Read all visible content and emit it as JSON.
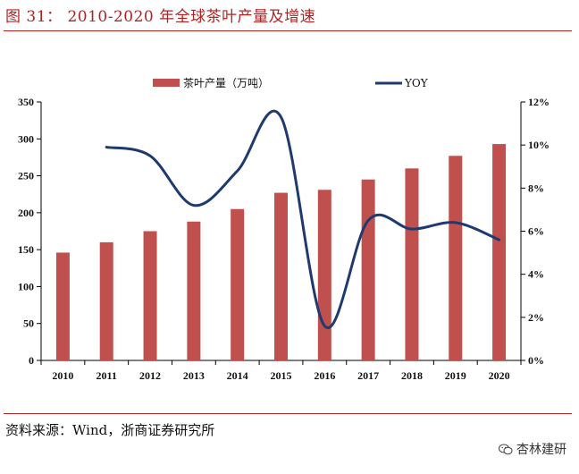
{
  "figure": {
    "title": "图 31： 2010-2020 年全球茶叶产量及增速",
    "source": "资料来源：Wind，浙商证券研究所",
    "watermark": "杏林建研",
    "watermark_icon": "wechat-icon"
  },
  "colors": {
    "bar": "#c0504d",
    "line": "#1f3a6e",
    "accent": "#b22222",
    "axis": "#000000"
  },
  "chart_data": {
    "type": "bar+line",
    "categories": [
      "2010",
      "2011",
      "2012",
      "2013",
      "2014",
      "2015",
      "2016",
      "2017",
      "2018",
      "2019",
      "2020"
    ],
    "series": [
      {
        "name": "茶叶产量（万吨）",
        "type": "bar",
        "axis": "left",
        "values": [
          146,
          160,
          175,
          188,
          205,
          227,
          231,
          245,
          260,
          277,
          293
        ]
      },
      {
        "name": "YOY",
        "type": "line",
        "axis": "right",
        "values": [
          null,
          9.9,
          9.5,
          7.2,
          8.8,
          11.3,
          1.6,
          6.5,
          6.1,
          6.4,
          5.6
        ]
      }
    ],
    "left_axis": {
      "min": 0,
      "max": 350,
      "step": 50,
      "ticks": [
        "0",
        "50",
        "100",
        "150",
        "200",
        "250",
        "300",
        "350"
      ]
    },
    "right_axis": {
      "min": 0,
      "max": 12,
      "step": 2,
      "ticks": [
        "0%",
        "2%",
        "4%",
        "6%",
        "8%",
        "10%",
        "12%"
      ]
    },
    "legend": [
      "茶叶产量（万吨）",
      "YOY"
    ],
    "legend_position": "top-center"
  }
}
